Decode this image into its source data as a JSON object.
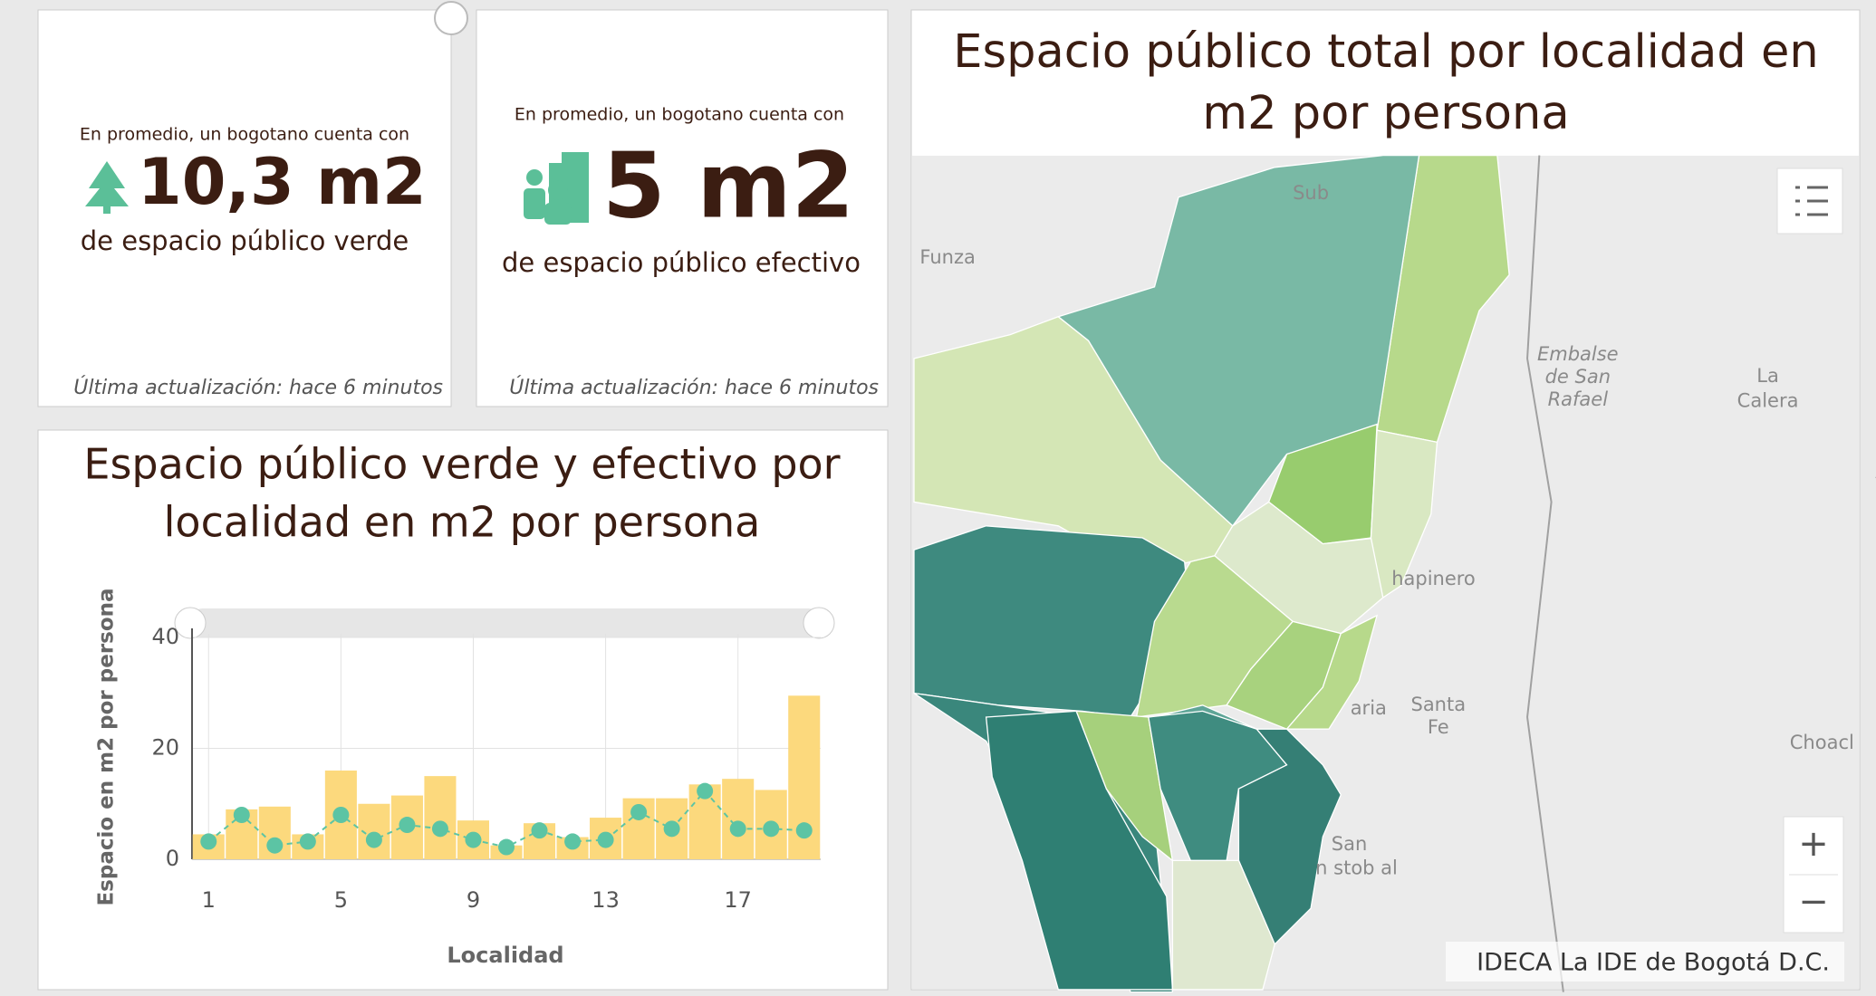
{
  "indicator_verde": {
    "top": "En promedio, un bogotano cuenta con",
    "value": "10,3 m2",
    "bottom": "de espacio público verde",
    "footer": "Última actualización: hace 6 minutos"
  },
  "indicator_efectivo": {
    "top": "En promedio, un bogotano cuenta con",
    "value": "5 m2",
    "bottom": "de espacio público efectivo",
    "footer": "Última actualización: hace 6 minutos"
  },
  "chart_data": {
    "type": "bar",
    "title": [
      "Espacio público verde y efectivo por",
      "localidad en m2 por persona"
    ],
    "x_label": "Localidad",
    "y_label": "Espacio en m2 por persona",
    "categories": [
      1,
      null,
      null,
      null,
      5,
      null,
      null,
      null,
      9,
      null,
      null,
      null,
      13,
      null,
      null,
      null,
      17,
      null,
      null
    ],
    "series": [
      {
        "type": "bar",
        "color": "#fcd97d",
        "values": [
          4.5,
          9,
          9.5,
          4.5,
          16,
          10,
          11.5,
          15,
          7,
          2.5,
          6.5,
          4,
          7.5,
          11,
          11,
          13.5,
          14.5,
          12.5,
          29.5
        ]
      },
      {
        "type": "line",
        "color": "#5cc4a4",
        "values": [
          3.2,
          8,
          2.5,
          3.2,
          8,
          3.5,
          6.2,
          5.5,
          3.5,
          2.2,
          5.2,
          3.2,
          3.5,
          8.5,
          5.5,
          12.3,
          5.5,
          5.5,
          5.2
        ]
      }
    ],
    "ylim": [
      0,
      40
    ],
    "yticks": [
      0,
      20,
      40
    ],
    "grid": true
  },
  "map": {
    "title": [
      "Espacio público total por localidad en",
      "m2 por persona"
    ],
    "labels": [
      "Funza",
      "Sub",
      "Embalse",
      "de San",
      "Rafael",
      "La",
      "Calera",
      "hapinero",
      "aria",
      "Santa",
      "Fe",
      "Choacl",
      "San",
      "n stob al"
    ],
    "zoom_in": "+",
    "zoom_out": "−",
    "attribution": "IDECA La IDE de Bogotá D.C."
  }
}
